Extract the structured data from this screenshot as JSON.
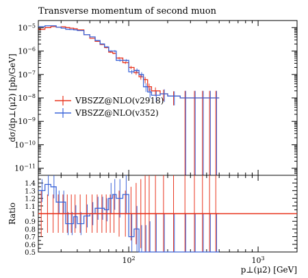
{
  "chart_data": {
    "type": "line",
    "title": "Transverse momentum of second muon",
    "xlabel": "p⊥(μ2) [GeV]",
    "ylabel": "dσ/dp⊥(μ2) [pb/GeV]",
    "ratio_ylabel": "Ratio",
    "x_scale": "log",
    "y_scale": "log",
    "xlim": [
      20,
      2000
    ],
    "ylim": [
      5e-12,
      2e-05
    ],
    "ratio_ylim": [
      0.5,
      1.5
    ],
    "x_tick_labels": [
      "10^2",
      "10^3"
    ],
    "y_tick_labels": [
      "10^-11",
      "10^-10",
      "10^-9",
      "10^-8",
      "10^-7",
      "10^-6",
      "10^-5"
    ],
    "ratio_tick_labels": [
      "0.5",
      "0.6",
      "0.7",
      "0.8",
      "0.9",
      "1",
      "1.1",
      "1.2",
      "1.3",
      "1.4"
    ],
    "legend_position": "middle-left",
    "bin_edges": [
      20,
      22.5,
      25,
      27.5,
      30,
      32.5,
      35,
      37.5,
      40,
      45,
      50,
      55,
      60,
      65,
      70,
      75,
      80,
      90,
      100,
      110,
      120,
      130,
      140,
      150,
      175,
      200,
      250,
      300,
      350,
      400,
      450,
      500
    ],
    "series": [
      {
        "name": "VBSZZ@NLO(v2918)",
        "color": "#e8321c",
        "values": [
          8.5e-06,
          1e-05,
          1.1e-05,
          1.05e-05,
          1.08e-05,
          1e-05,
          9.5e-06,
          9e-06,
          8e-06,
          5e-06,
          3.5e-06,
          2.6e-06,
          1.9e-06,
          1.4e-06,
          9e-07,
          8e-07,
          5e-07,
          3.2e-07,
          2e-07,
          1.2e-07,
          8e-08,
          6e-08,
          3e-08,
          2e-08,
          1.5e-08,
          1.2e-08,
          1e-08,
          1e-08,
          1e-08,
          1e-08,
          1e-08
        ],
        "errors_rel": [
          0.02,
          0.02,
          0.02,
          0.02,
          0.02,
          0.02,
          0.02,
          0.02,
          0.03,
          0.03,
          0.04,
          0.05,
          0.05,
          0.06,
          0.07,
          0.08,
          0.1,
          0.12,
          0.15,
          0.2,
          0.25,
          0.3,
          0.35,
          0.4,
          0.5,
          0.6,
          1.0,
          1.0,
          1.0,
          1.0,
          1.0
        ],
        "ratio_err": [
          0.3,
          0.25,
          0.25,
          0.25,
          0.25,
          0.25,
          0.25,
          0.25,
          0.25,
          0.25,
          0.25,
          0.25,
          0.25,
          0.25,
          0.25,
          0.25,
          0.3,
          0.3,
          0.35,
          0.4,
          0.45,
          0.5,
          0.5,
          0.55,
          0.6,
          0.65,
          0.7,
          0.7,
          0.7,
          0.7,
          0.7
        ]
      },
      {
        "name": "VBSZZ@NLO(v352)",
        "color": "#3a63d8",
        "values": [
          1.1e-05,
          1.2e-05,
          1.2e-05,
          1.05e-05,
          9.5e-06,
          8.5e-06,
          8.3e-06,
          8e-06,
          7.5e-06,
          5e-06,
          4e-06,
          2.8e-06,
          2e-06,
          1.5e-06,
          1e-06,
          1e-06,
          4e-07,
          4e-07,
          1.3e-07,
          1.5e-07,
          1e-07,
          3e-08,
          1.8e-08,
          1.3e-08,
          1.5e-08,
          1.2e-08,
          1e-08,
          1e-08,
          1e-08,
          1e-08,
          1e-08
        ],
        "errors_rel": [
          0.02,
          0.02,
          0.02,
          0.02,
          0.02,
          0.02,
          0.02,
          0.02,
          0.03,
          0.03,
          0.04,
          0.05,
          0.05,
          0.06,
          0.07,
          0.08,
          0.12,
          0.12,
          0.2,
          0.2,
          0.25,
          0.4,
          0.45,
          0.5,
          0.55,
          0.6,
          1.0,
          1.0,
          1.0,
          1.0,
          1.0
        ],
        "ratio": [
          1.3,
          1.38,
          1.35,
          1.15,
          1.15,
          0.87,
          0.87,
          0.96,
          0.87,
          0.97,
          1.0,
          1.07,
          1.07,
          1.05,
          1.2,
          1.25,
          1.2,
          1.25,
          0.7,
          0.8,
          0.5,
          0.45,
          0.45,
          0.5,
          0.5,
          0.5,
          0.5,
          0.5,
          0.5,
          0.5,
          0.5
        ],
        "ratio_err": [
          0.15,
          0.15,
          0.15,
          0.15,
          0.15,
          0.15,
          0.15,
          0.15,
          0.15,
          0.15,
          0.15,
          0.15,
          0.15,
          0.15,
          0.2,
          0.2,
          0.25,
          0.25,
          0.3,
          0.3,
          0.35,
          0.4,
          0.45,
          0.5,
          0.5,
          0.5,
          0.5,
          0.5,
          0.5,
          0.5,
          0.5
        ]
      }
    ]
  }
}
